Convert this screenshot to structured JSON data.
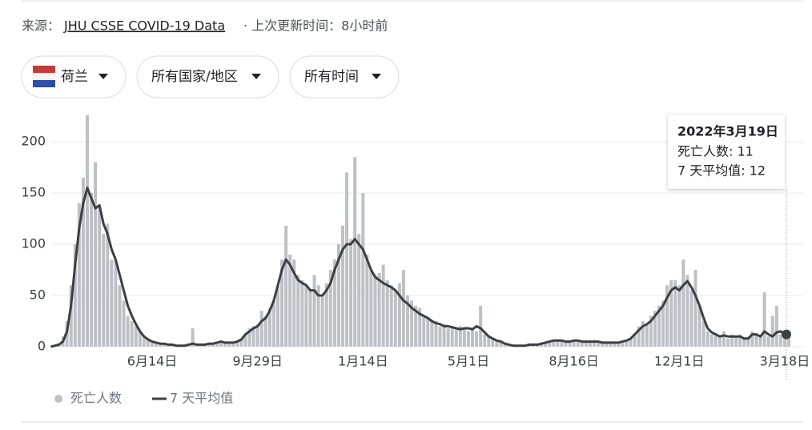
{
  "source": {
    "label": "来源：",
    "link": "JHU CSSE COVID-19 Data",
    "updated": "· 上次更新时间：8小时前"
  },
  "filters": [
    "荷兰",
    "所有国家/地区",
    "所有时间"
  ],
  "chart_data": {
    "type": "bar",
    "categories": [
      null,
      null,
      null,
      null,
      null,
      null,
      null,
      null,
      null,
      null,
      null,
      null,
      null,
      null,
      null,
      null,
      null,
      null,
      null,
      null,
      null,
      null,
      null,
      null,
      null,
      "6月14日",
      null,
      null,
      null,
      null,
      null,
      null,
      null,
      null,
      null,
      null,
      null,
      null,
      null,
      null,
      null,
      null,
      null,
      null,
      null,
      null,
      null,
      null,
      null,
      null,
      null,
      "9月29日",
      null,
      null,
      null,
      null,
      null,
      null,
      null,
      null,
      null,
      null,
      null,
      null,
      null,
      null,
      null,
      null,
      null,
      null,
      null,
      null,
      null,
      null,
      null,
      null,
      null,
      "1月14日",
      null,
      null,
      null,
      null,
      null,
      null,
      null,
      null,
      null,
      null,
      null,
      null,
      null,
      null,
      null,
      null,
      null,
      null,
      null,
      null,
      null,
      null,
      null,
      null,
      null,
      "5月1日",
      null,
      null,
      null,
      null,
      null,
      null,
      null,
      null,
      null,
      null,
      null,
      null,
      null,
      null,
      null,
      null,
      null,
      null,
      null,
      null,
      null,
      null,
      null,
      null,
      null,
      "8月16日",
      null,
      null,
      null,
      null,
      null,
      null,
      null,
      null,
      null,
      null,
      null,
      null,
      null,
      null,
      null,
      null,
      null,
      null,
      null,
      null,
      null,
      null,
      null,
      null,
      null,
      "12月1日",
      null,
      null,
      null,
      null,
      null,
      null,
      null,
      null,
      null,
      null,
      null,
      null,
      null,
      null,
      null,
      null,
      null,
      null,
      null,
      null,
      null,
      null,
      null,
      null,
      null,
      "3月18日",
      null
    ],
    "series": [
      {
        "name": "死亡人数",
        "type": "bar",
        "color": "#bdc1c6",
        "values": [
          0,
          1,
          3,
          10,
          25,
          60,
          100,
          140,
          165,
          226,
          150,
          180,
          135,
          110,
          120,
          85,
          85,
          60,
          45,
          30,
          25,
          20,
          15,
          10,
          7,
          5,
          4,
          3,
          3,
          2,
          2,
          1,
          1,
          2,
          3,
          18,
          2,
          2,
          3,
          3,
          4,
          5,
          6,
          4,
          5,
          4,
          5,
          8,
          12,
          18,
          20,
          22,
          35,
          30,
          38,
          45,
          60,
          85,
          118,
          90,
          85,
          70,
          65,
          60,
          55,
          70,
          60,
          50,
          62,
          75,
          85,
          100,
          118,
          170,
          105,
          185,
          110,
          150,
          90,
          75,
          70,
          72,
          80,
          65,
          60,
          55,
          62,
          75,
          50,
          45,
          40,
          38,
          30,
          28,
          25,
          25,
          20,
          22,
          18,
          20,
          18,
          20,
          17,
          15,
          18,
          15,
          40,
          12,
          10,
          8,
          6,
          5,
          4,
          3,
          2,
          2,
          2,
          2,
          1,
          2,
          2,
          3,
          4,
          5,
          6,
          6,
          5,
          6,
          5,
          6,
          7,
          6,
          5,
          5,
          6,
          5,
          5,
          4,
          5,
          4,
          4,
          5,
          6,
          8,
          12,
          20,
          25,
          22,
          30,
          35,
          40,
          45,
          60,
          65,
          65,
          60,
          85,
          70,
          55,
          75,
          40,
          25,
          15,
          12,
          12,
          10,
          15,
          8,
          12,
          10,
          12,
          8,
          10,
          15,
          12,
          10,
          53,
          10,
          30,
          40,
          12,
          15,
          11
        ]
      },
      {
        "name": "7 天平均值",
        "type": "line",
        "color": "#3c4043",
        "values": [
          0,
          1,
          2,
          5,
          15,
          40,
          80,
          115,
          140,
          155,
          145,
          135,
          138,
          120,
          110,
          95,
          85,
          70,
          55,
          40,
          30,
          22,
          15,
          10,
          7,
          5,
          4,
          3,
          3,
          2,
          2,
          1,
          1,
          1,
          2,
          3,
          2,
          2,
          2,
          3,
          3,
          4,
          5,
          4,
          4,
          4,
          5,
          7,
          12,
          15,
          18,
          20,
          25,
          28,
          35,
          45,
          60,
          75,
          85,
          80,
          72,
          65,
          62,
          60,
          55,
          55,
          50,
          50,
          55,
          62,
          75,
          85,
          95,
          100,
          100,
          105,
          100,
          95,
          85,
          75,
          68,
          65,
          62,
          60,
          58,
          55,
          50,
          45,
          42,
          38,
          35,
          32,
          30,
          28,
          25,
          23,
          22,
          20,
          20,
          19,
          18,
          17,
          18,
          18,
          17,
          20,
          18,
          14,
          10,
          8,
          6,
          5,
          3,
          2,
          1,
          1,
          1,
          1,
          2,
          2,
          2,
          3,
          4,
          5,
          6,
          6,
          6,
          5,
          5,
          6,
          6,
          5,
          5,
          5,
          5,
          5,
          4,
          4,
          4,
          4,
          4,
          5,
          6,
          8,
          12,
          16,
          20,
          22,
          25,
          30,
          35,
          40,
          48,
          55,
          58,
          55,
          60,
          64,
          58,
          50,
          40,
          28,
          18,
          14,
          12,
          10,
          11,
          10,
          10,
          10,
          10,
          8,
          8,
          12,
          12,
          10,
          15,
          12,
          10,
          14,
          15,
          12,
          12
        ]
      }
    ],
    "ylim": [
      0,
      225
    ],
    "yticks": [
      0,
      50,
      100,
      150,
      200
    ],
    "grid": true,
    "tooltip": {
      "title": "2022年3月19日",
      "lines": [
        "死亡人数: 11",
        "7 天平均值: 12"
      ]
    }
  }
}
